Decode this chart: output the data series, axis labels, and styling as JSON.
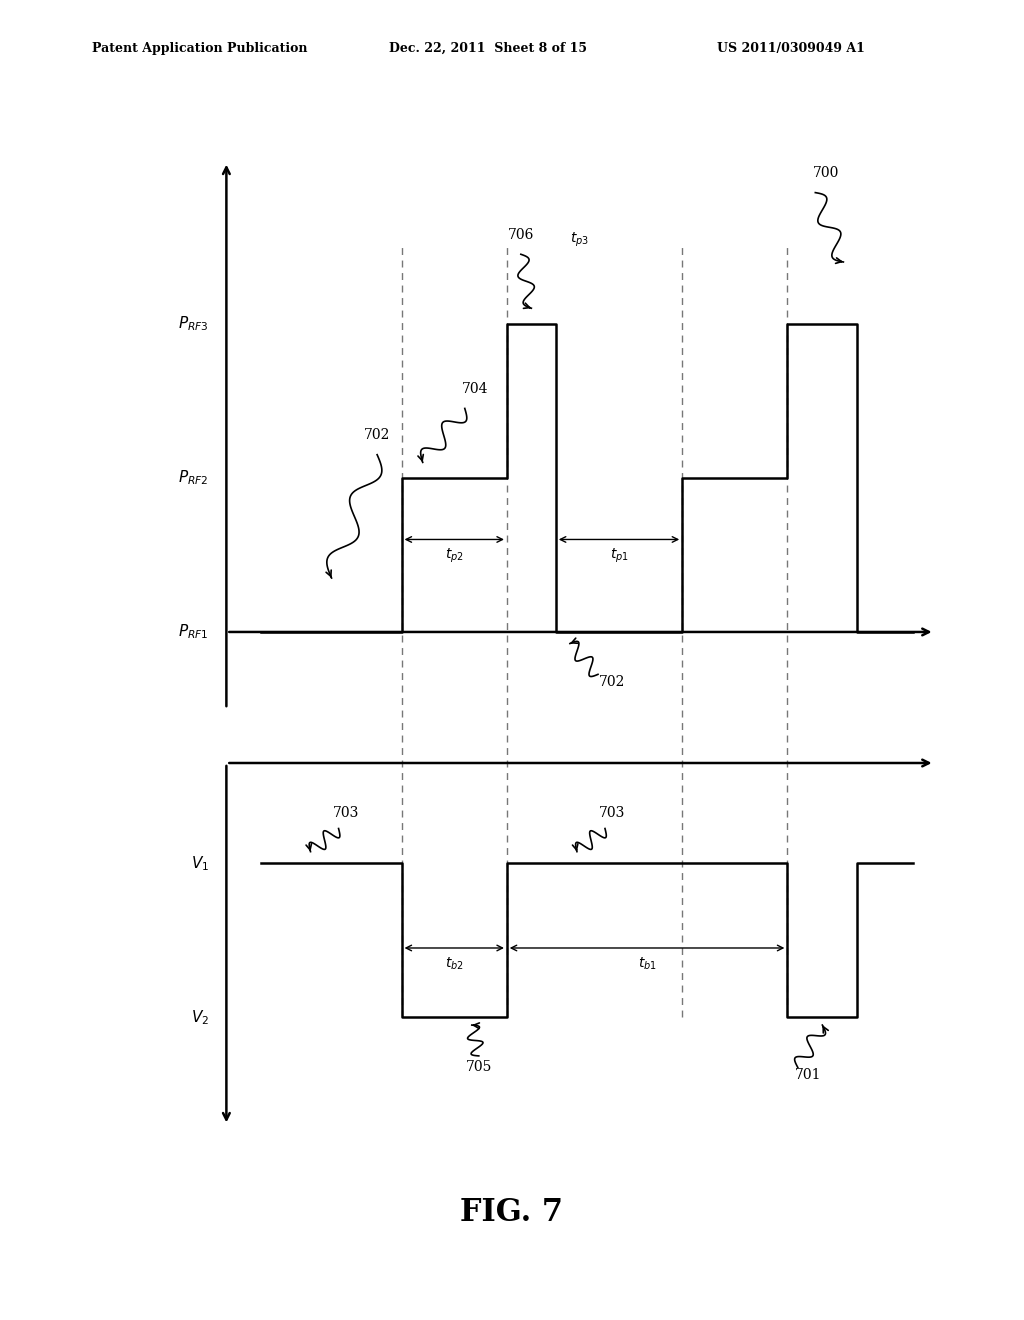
{
  "bg_color": "#ffffff",
  "header_left": "Patent Application Publication",
  "header_mid": "Dec. 22, 2011  Sheet 8 of 15",
  "header_right": "US 2011/0309049 A1",
  "fig_label": "FIG. 7",
  "line_color": "#000000",
  "dashed_color": "#777777"
}
